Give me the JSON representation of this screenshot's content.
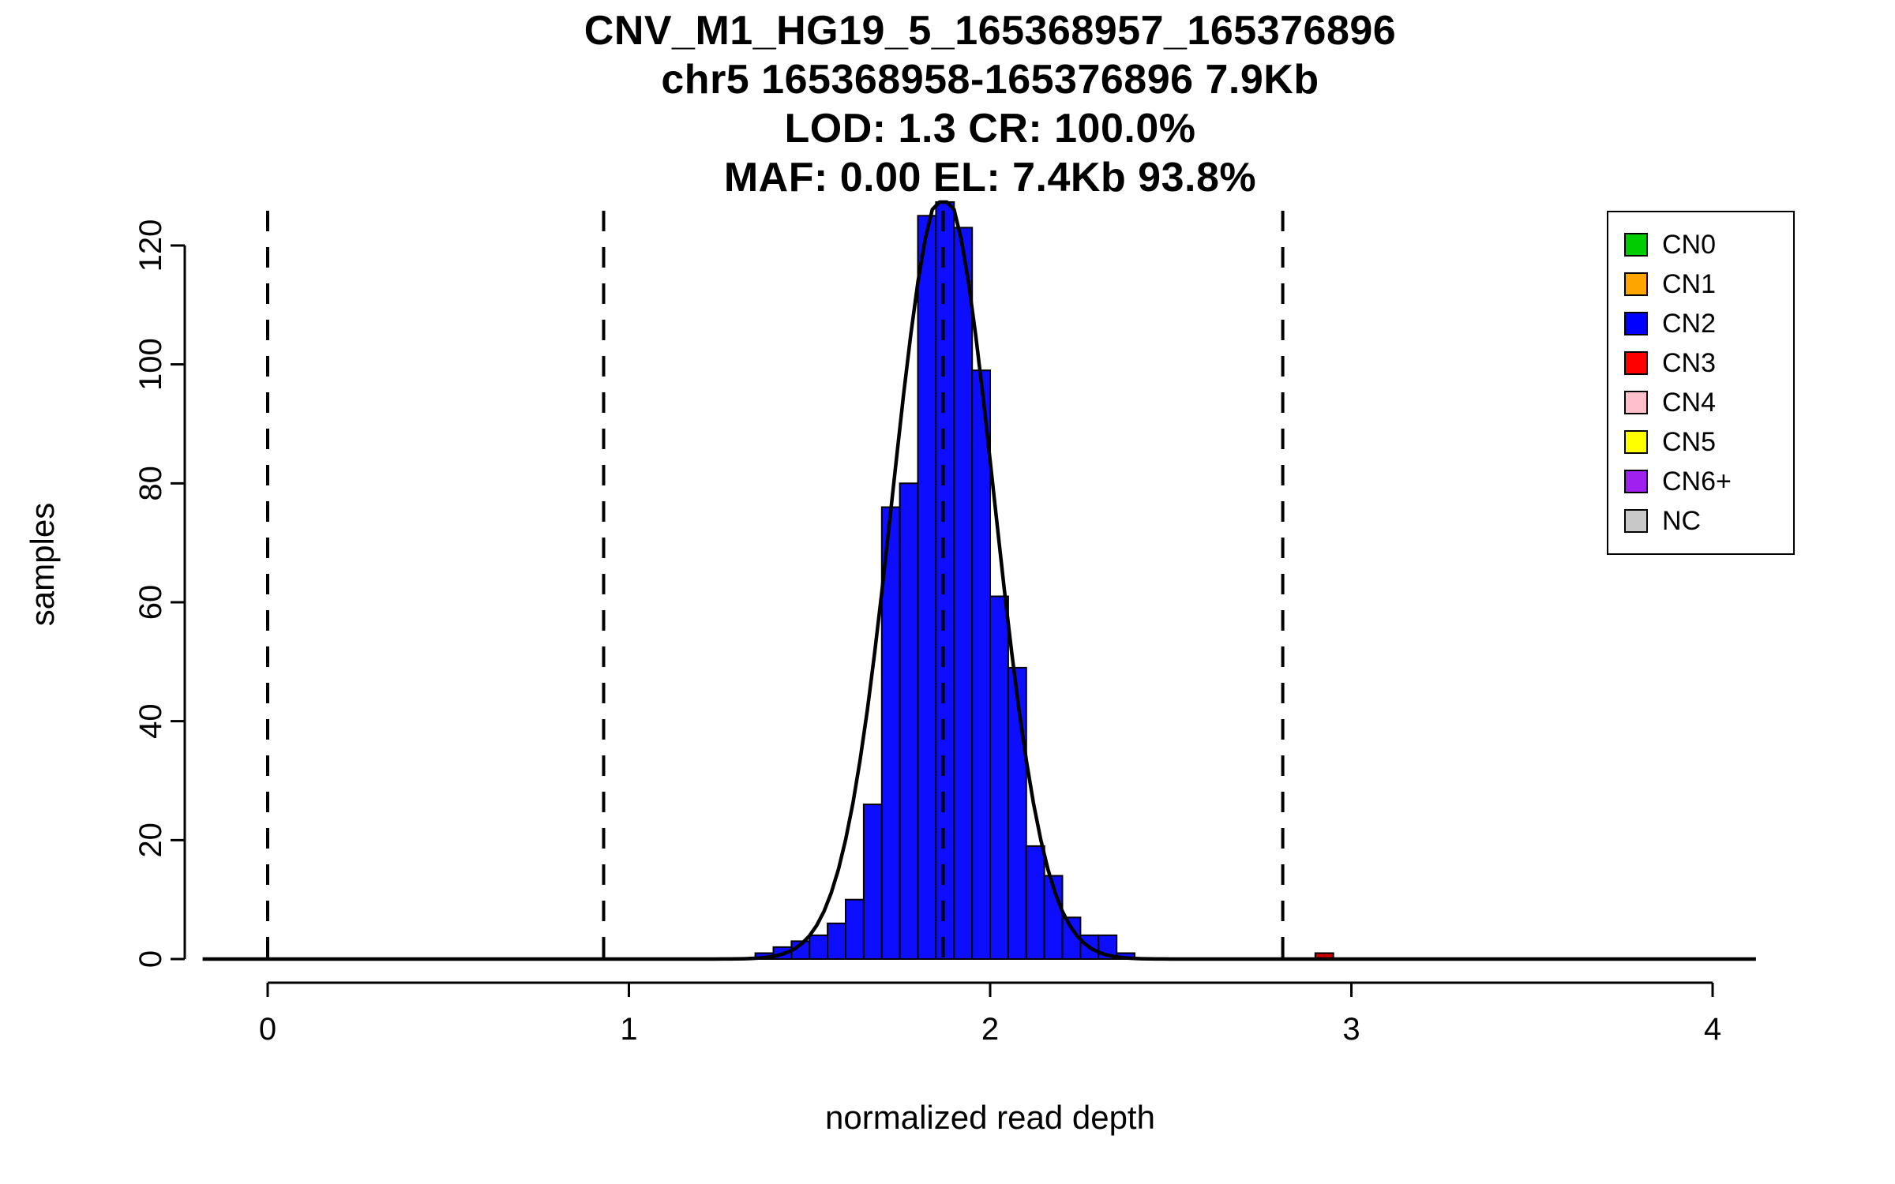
{
  "chart_data": {
    "type": "bar",
    "title": "CNV_M1_HG19_5_165368957_165376896",
    "subtitle_lines": [
      "chr5 165368958-165376896 7.9Kb",
      "LOD: 1.3 CR: 100.0%",
      "MAF: 0.00 EL: 7.4Kb 93.8%"
    ],
    "xlabel": "normalized read depth",
    "ylabel": "samples",
    "x_ticks": [
      0,
      1,
      2,
      3,
      4
    ],
    "y_ticks": [
      0,
      20,
      40,
      60,
      80,
      100,
      120
    ],
    "xlim": [
      -0.18,
      4.13
    ],
    "ylim": [
      0,
      127
    ],
    "grid": false,
    "legend_position": "top-right",
    "bin_width": 0.05,
    "histogram": {
      "name": "CN2",
      "color": "#0d0dff",
      "border_color": "#000000",
      "bins": [
        [
          1.35,
          1
        ],
        [
          1.4,
          2
        ],
        [
          1.45,
          3
        ],
        [
          1.5,
          4
        ],
        [
          1.55,
          6
        ],
        [
          1.6,
          10
        ],
        [
          1.65,
          26
        ],
        [
          1.7,
          76
        ],
        [
          1.75,
          80
        ],
        [
          1.8,
          125
        ],
        [
          1.85,
          130
        ],
        [
          1.9,
          123
        ],
        [
          1.95,
          99
        ],
        [
          2.0,
          61
        ],
        [
          2.05,
          49
        ],
        [
          2.1,
          19
        ],
        [
          2.15,
          14
        ],
        [
          2.2,
          7
        ],
        [
          2.25,
          4
        ],
        [
          2.3,
          4
        ],
        [
          2.35,
          1
        ]
      ]
    },
    "extra_bars": [
      {
        "x": 2.9,
        "count": 1,
        "color": "#cc0000",
        "name": "CN3"
      }
    ],
    "dashed_lines": [
      0,
      0.93,
      1.87,
      2.81
    ],
    "fit_curve": {
      "shape": "gaussian",
      "mean": 1.87,
      "sd": 0.14,
      "peak": 129,
      "color": "#000000"
    },
    "legend": [
      {
        "label": "CN0",
        "color": "#00cd00"
      },
      {
        "label": "CN1",
        "color": "#ffa500"
      },
      {
        "label": "CN2",
        "color": "#0000ff"
      },
      {
        "label": "CN3",
        "color": "#ff0000"
      },
      {
        "label": "CN4",
        "color": "#ffc0cb"
      },
      {
        "label": "CN5",
        "color": "#ffff00"
      },
      {
        "label": "CN6+",
        "color": "#a020f0"
      },
      {
        "label": "NC",
        "color": "#c8c8c8"
      }
    ]
  }
}
